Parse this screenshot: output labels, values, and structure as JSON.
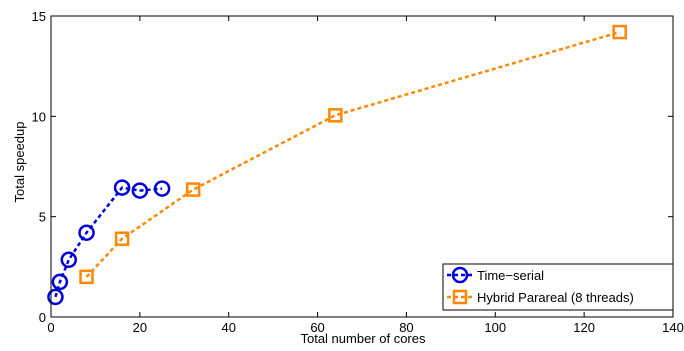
{
  "chart_data": {
    "type": "line",
    "title": "",
    "xlabel": "Total number of cores",
    "ylabel": "Total speedup",
    "xlim": [
      0,
      140
    ],
    "ylim": [
      0,
      15
    ],
    "xticks": [
      0,
      20,
      40,
      60,
      80,
      100,
      120,
      140
    ],
    "yticks": [
      0,
      5,
      10,
      15
    ],
    "grid": false,
    "legend": "bottom-right",
    "series": [
      {
        "name": "Time−serial",
        "color": "#0000dd",
        "marker": "circle",
        "x": [
          1,
          2,
          4,
          8,
          16,
          20,
          25
        ],
        "y": [
          1.0,
          1.75,
          2.85,
          4.2,
          6.45,
          6.3,
          6.4
        ]
      },
      {
        "name": "Hybrid Parareal (8 threads)",
        "color": "#ff8800",
        "marker": "square",
        "x": [
          8,
          16,
          32,
          64,
          128
        ],
        "y": [
          2.0,
          3.9,
          6.35,
          10.05,
          14.2
        ]
      }
    ]
  }
}
